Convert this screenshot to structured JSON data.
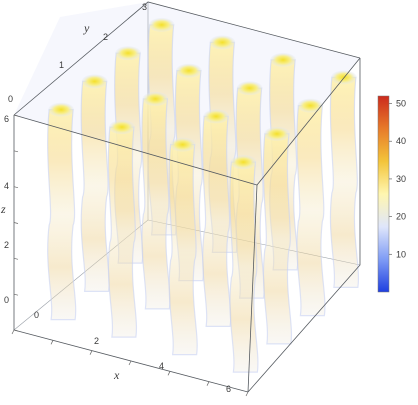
{
  "chart_data": {
    "type": "density3d",
    "title": "",
    "axes": {
      "x": {
        "label": "x",
        "range": [
          0,
          6
        ],
        "ticks": [
          "0",
          "2",
          "4",
          "6"
        ]
      },
      "y": {
        "label": "y",
        "range": [
          0,
          3
        ],
        "ticks": [
          "0",
          "1",
          "2",
          "3"
        ]
      },
      "z": {
        "label": "z",
        "range": [
          0,
          6
        ],
        "ticks": [
          "0",
          "2",
          "4",
          "6"
        ]
      }
    },
    "colorbar": {
      "range": [
        0,
        52
      ],
      "ticks": [
        "10",
        "20",
        "30",
        "40",
        "50"
      ],
      "colors": [
        "#1f3fe0",
        "#7f9cf5",
        "#dfe6fb",
        "#fff6b0",
        "#f3c43a",
        "#e77b2a",
        "#cc2b1d"
      ]
    },
    "columns_grid": {
      "x_count": 4,
      "y_count": 4
    },
    "box_corner_labels": {
      "top_y": "3",
      "left_top": "0",
      "left_top_z": "6"
    }
  }
}
